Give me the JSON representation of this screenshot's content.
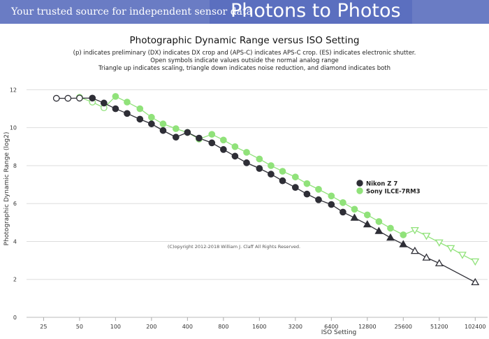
{
  "header": {
    "tagline": "Your trusted source for independent sensor data",
    "brand": "Photons to Photos",
    "colors": {
      "banner": "#6a7cc4"
    }
  },
  "chart_data": {
    "type": "line",
    "title": "Photographic Dynamic Range versus ISO Setting",
    "subtitles": [
      "(p) indicates preliminary (DX) indicates DX crop and (APS-C) indicates APS-C crop. (ES) indicates electronic shutter.",
      "Open symbols indicate values outside the normal analog range",
      "Triangle up indicates scaling, triangle down indicates noise reduction, and diamond indicates both"
    ],
    "xlabel": "ISO Setting",
    "ylabel": "Photographic Dynamic Range (log2)",
    "x_scale": "log2",
    "xlim": [
      18,
      130000
    ],
    "ylim": [
      0,
      12.9
    ],
    "x_ticks": [
      25,
      50,
      100,
      200,
      400,
      800,
      1600,
      3200,
      6400,
      12800,
      25600,
      51200,
      102400
    ],
    "y_ticks": [
      0,
      2,
      4,
      6,
      8,
      10,
      12
    ],
    "grid": "horizontal",
    "legend_position": "right",
    "copyright": "(C)opyright 2012-2018 William J. Claff All Rights Reserved.",
    "series": [
      {
        "name": "Nikon Z 7",
        "color": "#2e2e36",
        "points": [
          {
            "x": 32,
            "y": 11.55,
            "marker": "circle",
            "open": true
          },
          {
            "x": 40,
            "y": 11.55,
            "marker": "circle",
            "open": true
          },
          {
            "x": 50,
            "y": 11.56,
            "marker": "circle",
            "open": true
          },
          {
            "x": 64,
            "y": 11.56,
            "marker": "circle",
            "open": false
          },
          {
            "x": 80,
            "y": 11.3,
            "marker": "circle",
            "open": false
          },
          {
            "x": 100,
            "y": 11.0,
            "marker": "circle",
            "open": false
          },
          {
            "x": 125,
            "y": 10.75,
            "marker": "circle",
            "open": false
          },
          {
            "x": 160,
            "y": 10.45,
            "marker": "circle",
            "open": false
          },
          {
            "x": 200,
            "y": 10.2,
            "marker": "circle",
            "open": false
          },
          {
            "x": 250,
            "y": 9.85,
            "marker": "circle",
            "open": false
          },
          {
            "x": 320,
            "y": 9.5,
            "marker": "circle",
            "open": false
          },
          {
            "x": 400,
            "y": 9.75,
            "marker": "circle",
            "open": false
          },
          {
            "x": 500,
            "y": 9.45,
            "marker": "circle",
            "open": false
          },
          {
            "x": 640,
            "y": 9.2,
            "marker": "circle",
            "open": false
          },
          {
            "x": 800,
            "y": 8.85,
            "marker": "circle",
            "open": false
          },
          {
            "x": 1000,
            "y": 8.5,
            "marker": "circle",
            "open": false
          },
          {
            "x": 1250,
            "y": 8.15,
            "marker": "circle",
            "open": false
          },
          {
            "x": 1600,
            "y": 7.85,
            "marker": "circle",
            "open": false
          },
          {
            "x": 2000,
            "y": 7.55,
            "marker": "circle",
            "open": false
          },
          {
            "x": 2500,
            "y": 7.2,
            "marker": "circle",
            "open": false
          },
          {
            "x": 3200,
            "y": 6.85,
            "marker": "circle",
            "open": false
          },
          {
            "x": 4000,
            "y": 6.5,
            "marker": "circle",
            "open": false
          },
          {
            "x": 5000,
            "y": 6.2,
            "marker": "circle",
            "open": false
          },
          {
            "x": 6400,
            "y": 5.95,
            "marker": "circle",
            "open": false
          },
          {
            "x": 8000,
            "y": 5.55,
            "marker": "circle",
            "open": false
          },
          {
            "x": 10000,
            "y": 5.25,
            "marker": "triangle-up",
            "open": false
          },
          {
            "x": 12800,
            "y": 4.9,
            "marker": "triangle-up",
            "open": false
          },
          {
            "x": 16000,
            "y": 4.55,
            "marker": "triangle-up",
            "open": false
          },
          {
            "x": 20000,
            "y": 4.2,
            "marker": "triangle-up",
            "open": false
          },
          {
            "x": 25600,
            "y": 3.85,
            "marker": "triangle-up",
            "open": false
          },
          {
            "x": 32000,
            "y": 3.5,
            "marker": "triangle-up",
            "open": true
          },
          {
            "x": 40000,
            "y": 3.15,
            "marker": "triangle-up",
            "open": true
          },
          {
            "x": 51200,
            "y": 2.85,
            "marker": "triangle-up",
            "open": true
          },
          {
            "x": 102400,
            "y": 1.85,
            "marker": "triangle-up",
            "open": true
          }
        ]
      },
      {
        "name": "Sony ILCE-7RM3",
        "color": "#90e27a",
        "points": [
          {
            "x": 50,
            "y": 11.6,
            "marker": "circle",
            "open": true
          },
          {
            "x": 64,
            "y": 11.35,
            "marker": "circle",
            "open": true
          },
          {
            "x": 80,
            "y": 11.05,
            "marker": "circle",
            "open": true
          },
          {
            "x": 100,
            "y": 11.65,
            "marker": "circle",
            "open": false
          },
          {
            "x": 125,
            "y": 11.35,
            "marker": "circle",
            "open": false
          },
          {
            "x": 160,
            "y": 11.0,
            "marker": "circle",
            "open": false
          },
          {
            "x": 200,
            "y": 10.55,
            "marker": "circle",
            "open": false
          },
          {
            "x": 250,
            "y": 10.2,
            "marker": "circle",
            "open": false
          },
          {
            "x": 320,
            "y": 9.95,
            "marker": "circle",
            "open": false
          },
          {
            "x": 400,
            "y": 9.75,
            "marker": "circle",
            "open": false
          },
          {
            "x": 500,
            "y": 9.4,
            "marker": "circle",
            "open": false
          },
          {
            "x": 640,
            "y": 9.65,
            "marker": "circle",
            "open": false
          },
          {
            "x": 800,
            "y": 9.35,
            "marker": "circle",
            "open": false
          },
          {
            "x": 1000,
            "y": 9.0,
            "marker": "circle",
            "open": false
          },
          {
            "x": 1250,
            "y": 8.7,
            "marker": "circle",
            "open": false
          },
          {
            "x": 1600,
            "y": 8.35,
            "marker": "circle",
            "open": false
          },
          {
            "x": 2000,
            "y": 8.0,
            "marker": "circle",
            "open": false
          },
          {
            "x": 2500,
            "y": 7.7,
            "marker": "circle",
            "open": false
          },
          {
            "x": 3200,
            "y": 7.4,
            "marker": "circle",
            "open": false
          },
          {
            "x": 4000,
            "y": 7.05,
            "marker": "circle",
            "open": false
          },
          {
            "x": 5000,
            "y": 6.75,
            "marker": "circle",
            "open": false
          },
          {
            "x": 6400,
            "y": 6.4,
            "marker": "circle",
            "open": false
          },
          {
            "x": 8000,
            "y": 6.05,
            "marker": "circle",
            "open": false
          },
          {
            "x": 10000,
            "y": 5.7,
            "marker": "circle",
            "open": false
          },
          {
            "x": 12800,
            "y": 5.4,
            "marker": "circle",
            "open": false
          },
          {
            "x": 16000,
            "y": 5.05,
            "marker": "circle",
            "open": false
          },
          {
            "x": 20000,
            "y": 4.7,
            "marker": "circle",
            "open": false
          },
          {
            "x": 25600,
            "y": 4.35,
            "marker": "circle",
            "open": false
          },
          {
            "x": 32000,
            "y": 4.6,
            "marker": "triangle-down",
            "open": true
          },
          {
            "x": 40000,
            "y": 4.3,
            "marker": "triangle-down",
            "open": true
          },
          {
            "x": 51200,
            "y": 3.95,
            "marker": "triangle-down",
            "open": true
          },
          {
            "x": 64000,
            "y": 3.65,
            "marker": "triangle-down",
            "open": true
          },
          {
            "x": 80000,
            "y": 3.3,
            "marker": "triangle-down",
            "open": true
          },
          {
            "x": 102400,
            "y": 2.95,
            "marker": "triangle-down",
            "open": true
          }
        ]
      }
    ]
  }
}
